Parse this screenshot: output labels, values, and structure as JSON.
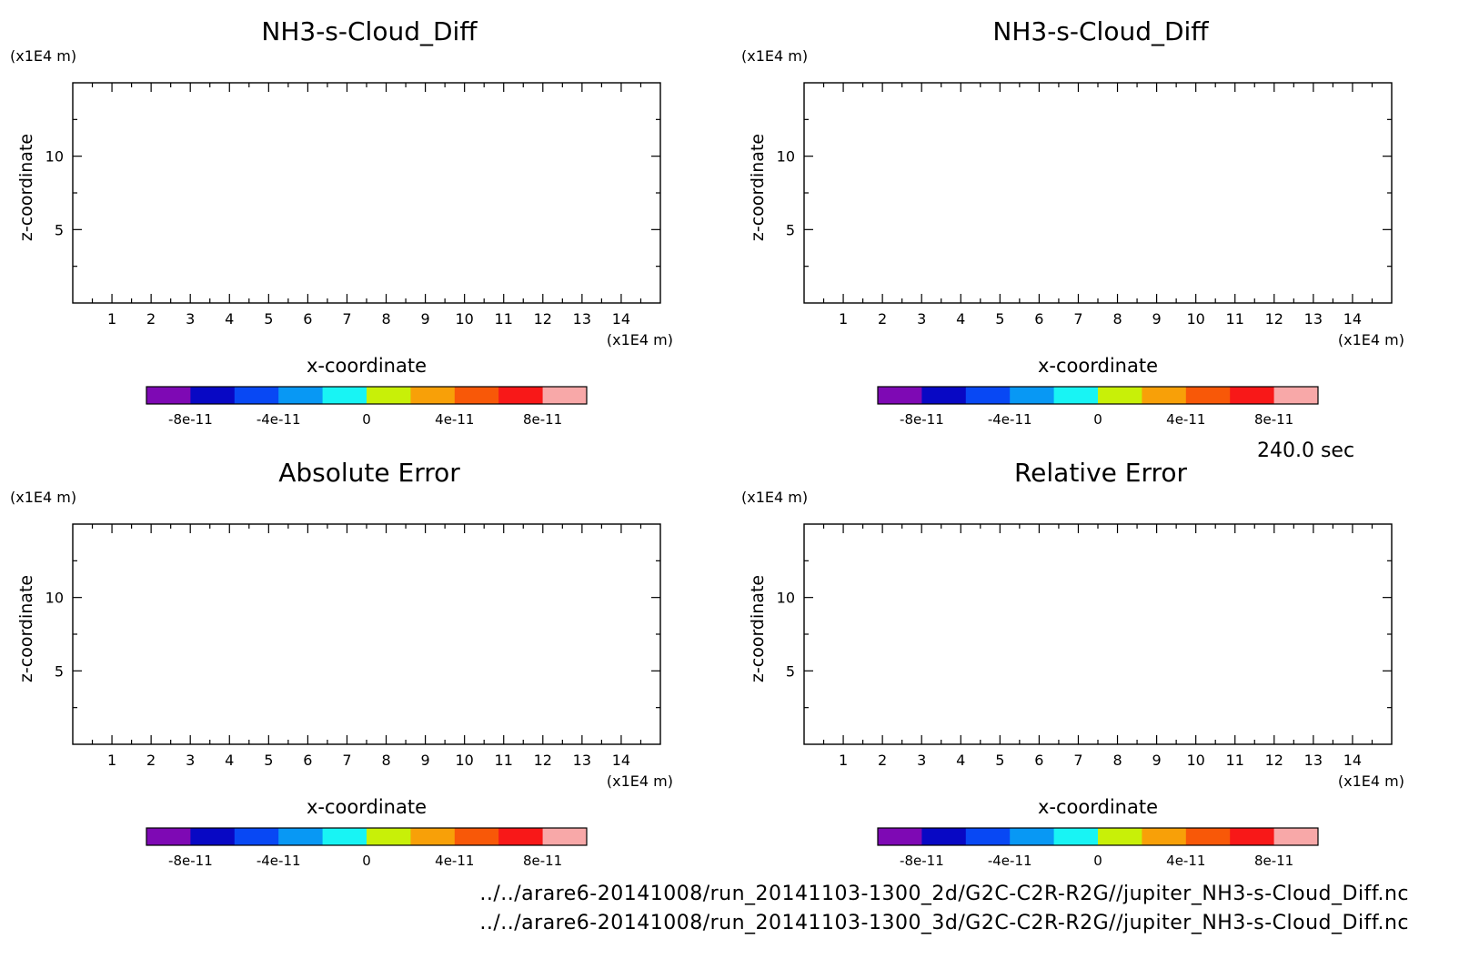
{
  "figure": {
    "time_label": "240.0 sec",
    "footer_lines": [
      "../../arare6-20141008/run_20141103-1300_2d/G2C-C2R-R2G//jupiter_NH3-s-Cloud_Diff.nc",
      "../../arare6-20141008/run_20141103-1300_3d/G2C-C2R-R2G//jupiter_NH3-s-Cloud_Diff.nc"
    ]
  },
  "chart_data": [
    {
      "type": "heatmap",
      "title": "NH3-s-Cloud_Diff",
      "xlabel": "x-coordinate",
      "ylabel": "z-coordinate",
      "x_unit": "(x1E4 m)",
      "y_unit": "(x1E4 m)",
      "xlim": [
        0,
        15
      ],
      "ylim": [
        0,
        15
      ],
      "x_ticks": [
        1,
        2,
        3,
        4,
        5,
        6,
        7,
        8,
        9,
        10,
        11,
        12,
        13,
        14
      ],
      "y_ticks": [
        5,
        10
      ],
      "colorbar": {
        "levels": 10,
        "colors": [
          "#7e09b4",
          "#0808c4",
          "#0848f4",
          "#0898f4",
          "#18f4f4",
          "#c8f008",
          "#f8a008",
          "#f85808",
          "#f81818",
          "#f8a8a8"
        ],
        "tick_labels": [
          "-8e-11",
          "-4e-11",
          "0",
          "4e-11",
          "8e-11"
        ],
        "tick_positions": [
          1,
          3,
          5,
          7,
          9
        ]
      }
    },
    {
      "type": "heatmap",
      "title": "NH3-s-Cloud_Diff",
      "xlabel": "x-coordinate",
      "ylabel": "z-coordinate",
      "x_unit": "(x1E4 m)",
      "y_unit": "(x1E4 m)",
      "xlim": [
        0,
        15
      ],
      "ylim": [
        0,
        15
      ],
      "x_ticks": [
        1,
        2,
        3,
        4,
        5,
        6,
        7,
        8,
        9,
        10,
        11,
        12,
        13,
        14
      ],
      "y_ticks": [
        5,
        10
      ],
      "colorbar": {
        "levels": 10,
        "colors": [
          "#7e09b4",
          "#0808c4",
          "#0848f4",
          "#0898f4",
          "#18f4f4",
          "#c8f008",
          "#f8a008",
          "#f85808",
          "#f81818",
          "#f8a8a8"
        ],
        "tick_labels": [
          "-8e-11",
          "-4e-11",
          "0",
          "4e-11",
          "8e-11"
        ],
        "tick_positions": [
          1,
          3,
          5,
          7,
          9
        ]
      }
    },
    {
      "type": "heatmap",
      "title": "Absolute Error",
      "xlabel": "x-coordinate",
      "ylabel": "z-coordinate",
      "x_unit": "(x1E4 m)",
      "y_unit": "(x1E4 m)",
      "xlim": [
        0,
        15
      ],
      "ylim": [
        0,
        15
      ],
      "x_ticks": [
        1,
        2,
        3,
        4,
        5,
        6,
        7,
        8,
        9,
        10,
        11,
        12,
        13,
        14
      ],
      "y_ticks": [
        5,
        10
      ],
      "colorbar": {
        "levels": 10,
        "colors": [
          "#7e09b4",
          "#0808c4",
          "#0848f4",
          "#0898f4",
          "#18f4f4",
          "#c8f008",
          "#f8a008",
          "#f85808",
          "#f81818",
          "#f8a8a8"
        ],
        "tick_labels": [
          "-8e-11",
          "-4e-11",
          "0",
          "4e-11",
          "8e-11"
        ],
        "tick_positions": [
          1,
          3,
          5,
          7,
          9
        ]
      }
    },
    {
      "type": "heatmap",
      "title": "Relative Error",
      "xlabel": "x-coordinate",
      "ylabel": "z-coordinate",
      "x_unit": "(x1E4 m)",
      "y_unit": "(x1E4 m)",
      "xlim": [
        0,
        15
      ],
      "ylim": [
        0,
        15
      ],
      "x_ticks": [
        1,
        2,
        3,
        4,
        5,
        6,
        7,
        8,
        9,
        10,
        11,
        12,
        13,
        14
      ],
      "y_ticks": [
        5,
        10
      ],
      "colorbar": {
        "levels": 10,
        "colors": [
          "#7e09b4",
          "#0808c4",
          "#0848f4",
          "#0898f4",
          "#18f4f4",
          "#c8f008",
          "#f8a008",
          "#f85808",
          "#f81818",
          "#f8a8a8"
        ],
        "tick_labels": [
          "-8e-11",
          "-4e-11",
          "0",
          "4e-11",
          "8e-11"
        ],
        "tick_positions": [
          1,
          3,
          5,
          7,
          9
        ]
      }
    }
  ]
}
